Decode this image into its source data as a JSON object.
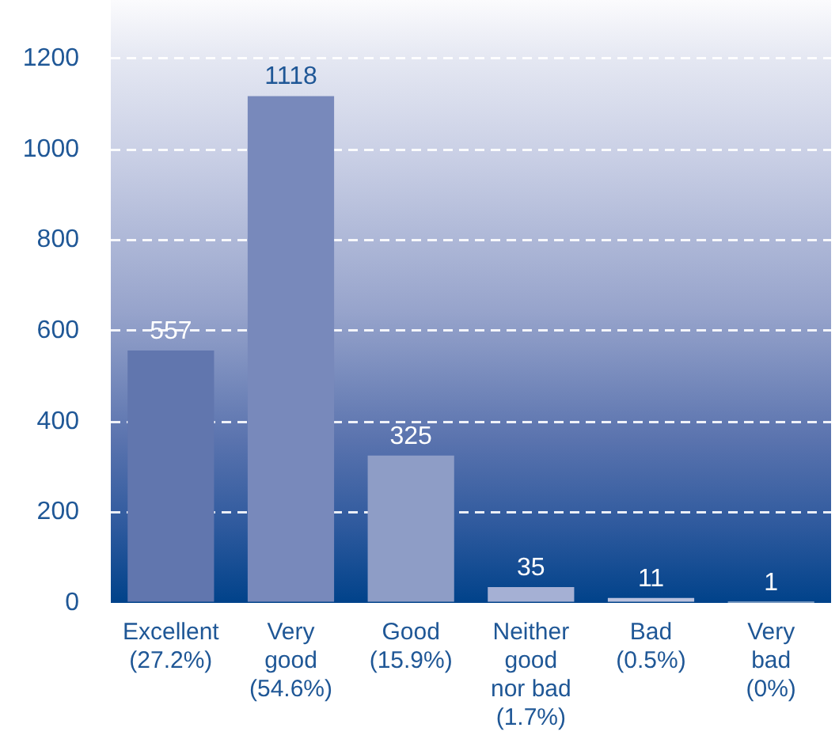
{
  "chart_data": {
    "type": "bar",
    "categories": [
      "Excellent (27.2%)",
      "Very good (54.6%)",
      "Good (15.9%)",
      "Neither good nor bad (1.7%)",
      "Bad (0.5%)",
      "Very bad (0%)"
    ],
    "values": [
      557,
      1118,
      325,
      35,
      11,
      1
    ],
    "colors": [
      "#6176ae",
      "#7889bb",
      "#8e9dc6",
      "#a5b0d4",
      "#b9c1de",
      "#e2e6f1"
    ],
    "ylim": [
      0,
      1330
    ],
    "yticks": [
      0,
      200,
      400,
      600,
      800,
      1000,
      1200
    ],
    "grid": "y",
    "data_labels": true
  }
}
